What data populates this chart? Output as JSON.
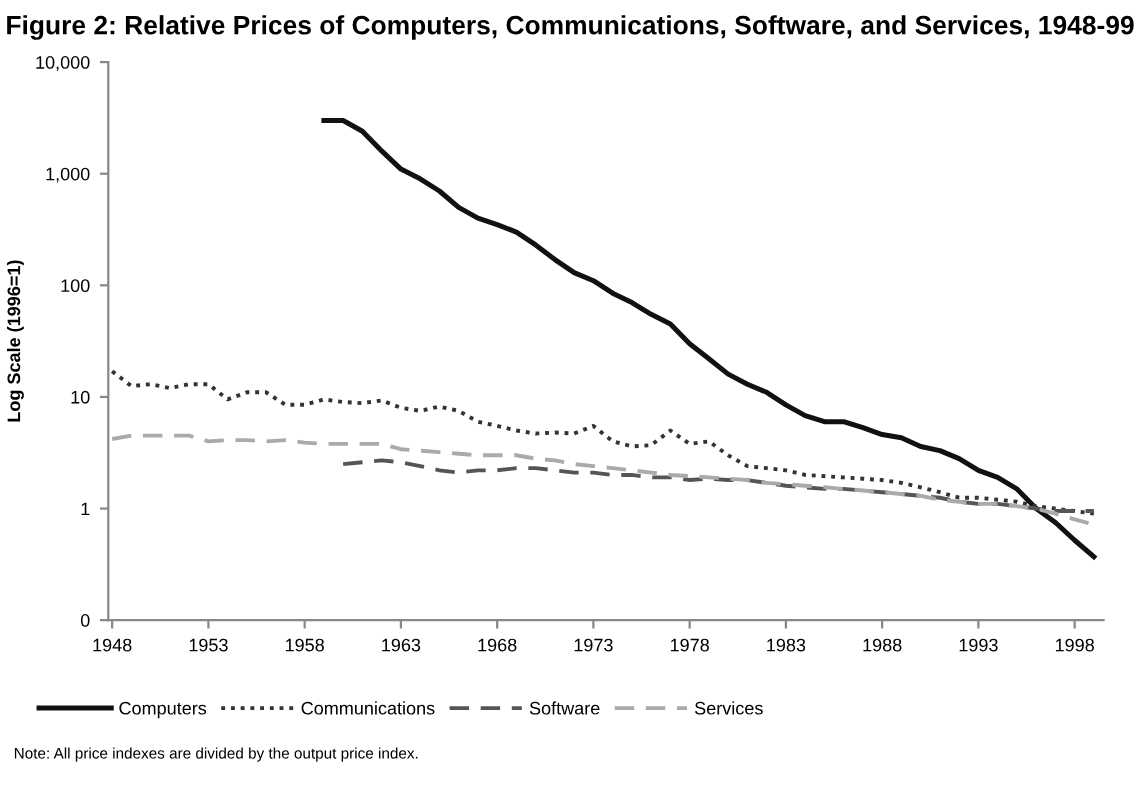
{
  "chart_data": {
    "type": "line",
    "title": "Figure 2: Relative Prices of Computers, Communications, Software, and Services, 1948-99",
    "ylabel": "Log Scale (1996=1)",
    "log": "y",
    "grid": false,
    "legend": "bottom",
    "marker": "none",
    "xlim": [
      1947.8,
      1999.5
    ],
    "xticks": [
      1948,
      1953,
      1958,
      1963,
      1968,
      1973,
      1978,
      1983,
      1988,
      1993,
      1998
    ],
    "ylim": [
      0.1,
      10000
    ],
    "yticks": [
      {
        "value": 0.1,
        "label": "0"
      },
      1,
      10,
      100,
      {
        "value": 1000,
        "label": "1,000"
      },
      {
        "value": 10000,
        "label": "10,000"
      }
    ],
    "annotations": [
      "Note: All price indexes are divided by the output price index."
    ],
    "series": [
      {
        "name": "Computers",
        "color": "#111111",
        "line_style": "solid",
        "x": [
          1959,
          1960,
          1961,
          1962,
          1963,
          1964,
          1965,
          1966,
          1967,
          1968,
          1969,
          1970,
          1971,
          1972,
          1973,
          1974,
          1975,
          1976,
          1977,
          1978,
          1979,
          1980,
          1981,
          1982,
          1983,
          1984,
          1985,
          1986,
          1987,
          1988,
          1989,
          1990,
          1991,
          1992,
          1993,
          1994,
          1995,
          1996,
          1997,
          1998,
          1999
        ],
        "values": [
          3000,
          3000,
          2400,
          1600,
          1100,
          900,
          700,
          500,
          400,
          350,
          300,
          230,
          170,
          130,
          110,
          85,
          70,
          55,
          45,
          30,
          22,
          16,
          13,
          11,
          8.5,
          6.8,
          6,
          6,
          5.3,
          4.6,
          4.3,
          3.6,
          3.3,
          2.8,
          2.2,
          1.9,
          1.5,
          1.0,
          0.75,
          0.52,
          0.37
        ]
      },
      {
        "name": "Communications",
        "color": "#333333",
        "line_style": "dotted",
        "x": [
          1948,
          1949,
          1950,
          1951,
          1952,
          1953,
          1954,
          1955,
          1956,
          1957,
          1958,
          1959,
          1960,
          1961,
          1962,
          1963,
          1964,
          1965,
          1966,
          1967,
          1968,
          1969,
          1970,
          1971,
          1972,
          1973,
          1974,
          1975,
          1976,
          1977,
          1978,
          1979,
          1980,
          1981,
          1982,
          1983,
          1984,
          1985,
          1986,
          1987,
          1988,
          1989,
          1990,
          1991,
          1992,
          1993,
          1994,
          1995,
          1996,
          1997,
          1998,
          1999
        ],
        "values": [
          17,
          12.5,
          13,
          12,
          13,
          13,
          9.5,
          11,
          11,
          8.5,
          8.5,
          9.5,
          9,
          8.8,
          9.3,
          8,
          7.5,
          8.2,
          7.5,
          6,
          5.5,
          5,
          4.7,
          4.8,
          4.7,
          5.5,
          4,
          3.6,
          3.7,
          5,
          3.8,
          4,
          3,
          2.4,
          2.3,
          2.2,
          2.0,
          1.95,
          1.9,
          1.85,
          1.8,
          1.7,
          1.55,
          1.4,
          1.25,
          1.25,
          1.2,
          1.15,
          1.05,
          1.0,
          0.95,
          0.9
        ]
      },
      {
        "name": "Software",
        "color": "#555555",
        "line_style": "dashed",
        "x": [
          1960,
          1961,
          1962,
          1963,
          1964,
          1965,
          1966,
          1967,
          1968,
          1969,
          1970,
          1971,
          1972,
          1973,
          1974,
          1975,
          1976,
          1977,
          1978,
          1979,
          1980,
          1981,
          1982,
          1983,
          1984,
          1985,
          1986,
          1987,
          1988,
          1989,
          1990,
          1991,
          1992,
          1993,
          1994,
          1995,
          1996,
          1997,
          1998,
          1999
        ],
        "values": [
          2.5,
          2.6,
          2.7,
          2.6,
          2.4,
          2.2,
          2.1,
          2.2,
          2.2,
          2.3,
          2.3,
          2.2,
          2.1,
          2.1,
          2.0,
          2.0,
          1.9,
          1.9,
          1.8,
          1.85,
          1.8,
          1.8,
          1.7,
          1.6,
          1.55,
          1.5,
          1.5,
          1.45,
          1.4,
          1.35,
          1.3,
          1.25,
          1.15,
          1.1,
          1.1,
          1.05,
          1.0,
          0.95,
          0.95,
          0.95
        ]
      },
      {
        "name": "Services",
        "color": "#aaaaaa",
        "line_style": "dashed",
        "x": [
          1948,
          1949,
          1950,
          1951,
          1952,
          1953,
          1954,
          1955,
          1956,
          1957,
          1958,
          1959,
          1960,
          1961,
          1962,
          1963,
          1964,
          1965,
          1966,
          1967,
          1968,
          1969,
          1970,
          1971,
          1972,
          1973,
          1974,
          1975,
          1976,
          1977,
          1978,
          1979,
          1980,
          1981,
          1982,
          1983,
          1984,
          1985,
          1986,
          1987,
          1988,
          1989,
          1990,
          1991,
          1992,
          1993,
          1994,
          1995,
          1996,
          1997,
          1998,
          1999
        ],
        "values": [
          4.2,
          4.5,
          4.5,
          4.5,
          4.5,
          4.0,
          4.1,
          4.1,
          4.0,
          4.1,
          3.9,
          3.8,
          3.8,
          3.8,
          3.8,
          3.4,
          3.3,
          3.2,
          3.1,
          3.0,
          3.0,
          3.0,
          2.8,
          2.7,
          2.5,
          2.4,
          2.3,
          2.2,
          2.1,
          2.0,
          1.95,
          1.9,
          1.85,
          1.8,
          1.7,
          1.65,
          1.6,
          1.55,
          1.5,
          1.45,
          1.4,
          1.35,
          1.3,
          1.2,
          1.15,
          1.1,
          1.1,
          1.05,
          1.0,
          0.9,
          0.8,
          0.72
        ]
      }
    ]
  }
}
